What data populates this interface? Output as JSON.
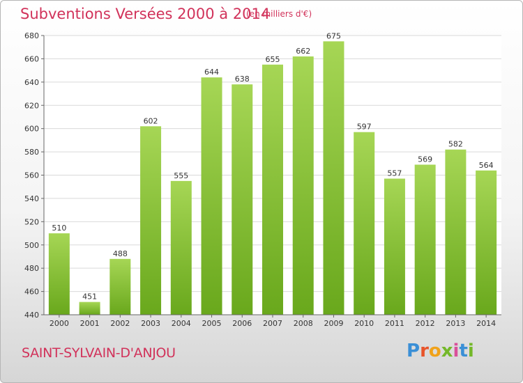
{
  "header": {
    "title": "Subventions Versées 2000 à 2014",
    "subtitle": "(en milliers d'€)"
  },
  "footer": {
    "commune": "SAINT-SYLVAIN-D'ANJOU",
    "logo_text": "Proxiti"
  },
  "colors": {
    "title": "#d1325a",
    "bar_light": "#a6d655",
    "bar_dark": "#69a81c",
    "grid": "#d9d9d9",
    "logo": [
      "#3a8fd6",
      "#e8542a",
      "#f0a21a",
      "#74b82a",
      "#d94f9a",
      "#3a8fd6",
      "#74b82a"
    ]
  },
  "chart_data": {
    "type": "bar",
    "title": "Subventions Versées 2000 à 2014",
    "subtitle": "(en milliers d'€)",
    "xlabel": "",
    "ylabel": "",
    "categories": [
      "2000",
      "2001",
      "2002",
      "2003",
      "2004",
      "2005",
      "2006",
      "2007",
      "2008",
      "2009",
      "2010",
      "2011",
      "2012",
      "2013",
      "2014"
    ],
    "values": [
      510,
      451,
      488,
      602,
      555,
      644,
      638,
      655,
      662,
      675,
      597,
      557,
      569,
      582,
      564
    ],
    "ylim": [
      440,
      680
    ],
    "yticks": [
      440,
      460,
      480,
      500,
      520,
      540,
      560,
      580,
      600,
      620,
      640,
      660,
      680
    ],
    "grid": true,
    "data_labels": true
  }
}
